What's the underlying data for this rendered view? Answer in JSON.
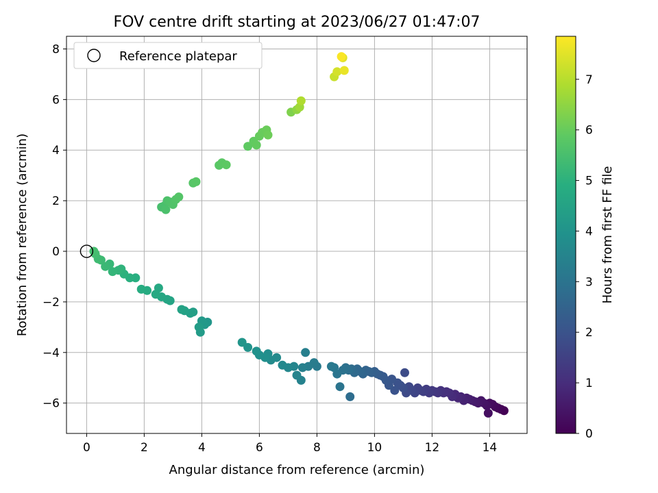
{
  "chart_data": {
    "type": "scatter",
    "title": "FOV centre drift starting at 2023/06/27 01:47:07",
    "xlabel": "Angular distance from reference (arcmin)",
    "ylabel": "Rotation from reference (arcmin)",
    "xlim": [
      -0.7,
      15.3
    ],
    "ylim": [
      -7.2,
      8.5
    ],
    "xticks": [
      0,
      2,
      4,
      6,
      8,
      10,
      12,
      14
    ],
    "yticks": [
      -6,
      -4,
      -2,
      0,
      2,
      4,
      6,
      8
    ],
    "grid": true,
    "legend": {
      "placement": "top-left",
      "entries": [
        "Reference platepar"
      ]
    },
    "reference_point": {
      "x": 0,
      "y": 0
    },
    "colorbar": {
      "label": "Hours from first FF file",
      "colormap": "viridis",
      "range": [
        0,
        7.85
      ],
      "ticks": [
        0,
        1,
        2,
        3,
        4,
        5,
        6,
        7
      ]
    },
    "points": [
      [
        14.5,
        -6.3,
        0.0
      ],
      [
        14.4,
        -6.25,
        0.05
      ],
      [
        14.3,
        -6.2,
        0.1
      ],
      [
        14.2,
        -6.15,
        0.15
      ],
      [
        14.1,
        -6.05,
        0.2
      ],
      [
        14.0,
        -6.0,
        0.25
      ],
      [
        13.95,
        -6.4,
        0.3
      ],
      [
        13.9,
        -6.1,
        0.35
      ],
      [
        13.8,
        -6.0,
        0.4
      ],
      [
        13.7,
        -5.9,
        0.45
      ],
      [
        13.6,
        -6.0,
        0.5
      ],
      [
        13.5,
        -5.95,
        0.55
      ],
      [
        13.4,
        -5.9,
        0.6
      ],
      [
        13.3,
        -5.85,
        0.65
      ],
      [
        13.2,
        -5.8,
        0.7
      ],
      [
        13.1,
        -5.9,
        0.75
      ],
      [
        13.0,
        -5.75,
        0.8
      ],
      [
        12.9,
        -5.8,
        0.85
      ],
      [
        12.8,
        -5.65,
        0.9
      ],
      [
        12.7,
        -5.75,
        0.95
      ],
      [
        12.6,
        -5.6,
        1.0
      ],
      [
        12.5,
        -5.55,
        1.05
      ],
      [
        12.4,
        -5.6,
        1.1
      ],
      [
        12.3,
        -5.5,
        1.15
      ],
      [
        12.2,
        -5.6,
        1.2
      ],
      [
        12.1,
        -5.55,
        1.25
      ],
      [
        12.0,
        -5.5,
        1.3
      ],
      [
        11.9,
        -5.6,
        1.35
      ],
      [
        11.8,
        -5.45,
        1.4
      ],
      [
        11.7,
        -5.55,
        1.45
      ],
      [
        11.6,
        -5.5,
        1.5
      ],
      [
        11.5,
        -5.4,
        1.55
      ],
      [
        11.4,
        -5.6,
        1.6
      ],
      [
        11.3,
        -5.5,
        1.65
      ],
      [
        11.2,
        -5.35,
        1.7
      ],
      [
        11.1,
        -5.6,
        1.75
      ],
      [
        11.05,
        -4.8,
        1.8
      ],
      [
        11.0,
        -5.4,
        1.85
      ],
      [
        10.9,
        -5.3,
        1.9
      ],
      [
        10.8,
        -5.2,
        1.95
      ],
      [
        10.7,
        -5.5,
        2.0
      ],
      [
        10.6,
        -5.05,
        2.05
      ],
      [
        10.5,
        -5.3,
        2.1
      ],
      [
        10.4,
        -5.1,
        2.15
      ],
      [
        10.3,
        -4.95,
        2.2
      ],
      [
        10.2,
        -4.9,
        2.25
      ],
      [
        10.1,
        -4.85,
        2.3
      ],
      [
        10.0,
        -4.75,
        2.35
      ],
      [
        9.9,
        -4.8,
        2.4
      ],
      [
        9.8,
        -4.75,
        2.45
      ],
      [
        9.7,
        -4.7,
        2.5
      ],
      [
        9.6,
        -4.85,
        2.55
      ],
      [
        9.5,
        -4.75,
        2.6
      ],
      [
        9.4,
        -4.65,
        2.65
      ],
      [
        9.3,
        -4.8,
        2.7
      ],
      [
        9.2,
        -4.65,
        2.75
      ],
      [
        9.15,
        -5.75,
        2.8
      ],
      [
        9.1,
        -4.7,
        2.85
      ],
      [
        9.0,
        -4.6,
        2.9
      ],
      [
        8.9,
        -4.7,
        2.95
      ],
      [
        8.8,
        -5.35,
        3.0
      ],
      [
        8.7,
        -4.85,
        3.05
      ],
      [
        8.6,
        -4.6,
        3.1
      ],
      [
        8.5,
        -4.55,
        3.15
      ],
      [
        8.0,
        -4.55,
        3.2
      ],
      [
        7.9,
        -4.4,
        3.25
      ],
      [
        7.7,
        -4.55,
        3.3
      ],
      [
        7.6,
        -4.0,
        3.35
      ],
      [
        7.5,
        -4.6,
        3.4
      ],
      [
        7.45,
        -5.1,
        3.45
      ],
      [
        7.3,
        -4.9,
        3.5
      ],
      [
        7.2,
        -4.55,
        3.55
      ],
      [
        7.0,
        -4.6,
        3.6
      ],
      [
        6.8,
        -4.5,
        3.65
      ],
      [
        6.6,
        -4.2,
        3.7
      ],
      [
        6.4,
        -4.3,
        3.75
      ],
      [
        6.3,
        -4.05,
        3.8
      ],
      [
        6.2,
        -4.2,
        3.85
      ],
      [
        6.0,
        -4.1,
        3.9
      ],
      [
        5.9,
        -3.95,
        3.95
      ],
      [
        5.6,
        -3.8,
        4.0
      ],
      [
        5.4,
        -3.6,
        4.05
      ],
      [
        4.2,
        -2.8,
        4.1
      ],
      [
        4.1,
        -2.9,
        4.15
      ],
      [
        4.0,
        -2.75,
        4.2
      ],
      [
        3.95,
        -3.2,
        4.25
      ],
      [
        3.9,
        -3.0,
        4.3
      ],
      [
        3.7,
        -2.4,
        4.35
      ],
      [
        3.6,
        -2.45,
        4.4
      ],
      [
        3.4,
        -2.35,
        4.45
      ],
      [
        3.3,
        -2.3,
        4.5
      ],
      [
        2.9,
        -1.95,
        4.55
      ],
      [
        2.8,
        -1.9,
        4.6
      ],
      [
        2.6,
        -1.8,
        4.65
      ],
      [
        2.5,
        -1.45,
        4.7
      ],
      [
        2.4,
        -1.7,
        4.75
      ],
      [
        2.1,
        -1.55,
        4.8
      ],
      [
        1.9,
        -1.5,
        4.85
      ],
      [
        1.7,
        -1.05,
        4.9
      ],
      [
        1.5,
        -1.05,
        4.95
      ],
      [
        1.3,
        -0.9,
        5.0
      ],
      [
        1.2,
        -0.7,
        5.05
      ],
      [
        1.1,
        -0.75,
        5.1
      ],
      [
        0.9,
        -0.8,
        5.15
      ],
      [
        0.8,
        -0.5,
        5.2
      ],
      [
        0.65,
        -0.6,
        5.25
      ],
      [
        0.5,
        -0.35,
        5.3
      ],
      [
        0.4,
        -0.3,
        5.35
      ],
      [
        0.3,
        -0.1,
        5.4
      ],
      [
        0.25,
        0.0,
        5.45
      ],
      [
        2.6,
        1.75,
        5.5
      ],
      [
        2.7,
        1.8,
        5.53
      ],
      [
        2.75,
        1.65,
        5.56
      ],
      [
        2.8,
        2.0,
        5.59
      ],
      [
        2.9,
        1.95,
        5.62
      ],
      [
        3.0,
        1.85,
        5.65
      ],
      [
        3.1,
        2.05,
        5.68
      ],
      [
        3.2,
        2.15,
        5.71
      ],
      [
        3.7,
        2.7,
        5.74
      ],
      [
        3.8,
        2.75,
        5.77
      ],
      [
        4.6,
        3.4,
        5.8
      ],
      [
        4.7,
        3.5,
        5.83
      ],
      [
        4.85,
        3.42,
        5.86
      ],
      [
        5.6,
        4.15,
        5.89
      ],
      [
        5.8,
        4.35,
        5.92
      ],
      [
        5.9,
        4.2,
        5.95
      ],
      [
        6.0,
        4.55,
        5.98
      ],
      [
        6.1,
        4.7,
        6.01
      ],
      [
        6.25,
        4.8,
        6.04
      ],
      [
        6.3,
        4.6,
        6.07
      ],
      [
        7.1,
        5.5,
        6.3
      ],
      [
        7.3,
        5.6,
        6.5
      ],
      [
        7.4,
        5.7,
        6.7
      ],
      [
        7.45,
        5.95,
        6.9
      ],
      [
        8.6,
        6.9,
        7.2
      ],
      [
        8.7,
        7.1,
        7.35
      ],
      [
        8.9,
        7.65,
        7.5
      ],
      [
        8.95,
        7.15,
        7.6
      ],
      [
        8.85,
        7.7,
        7.8
      ]
    ]
  }
}
